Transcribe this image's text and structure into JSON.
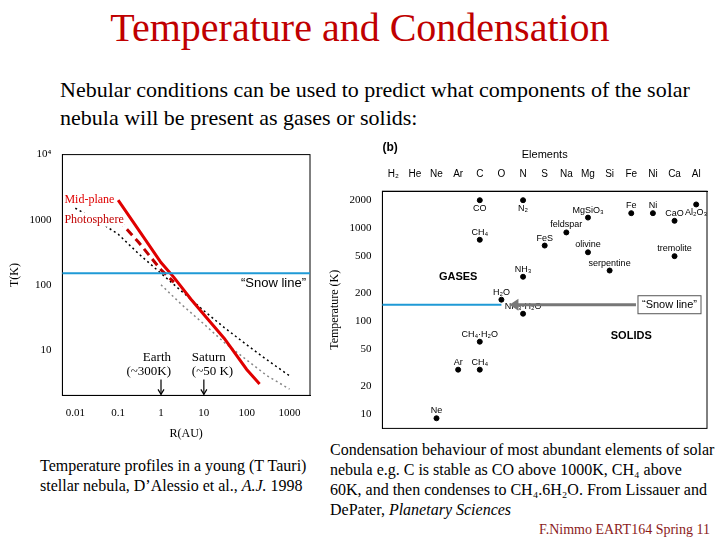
{
  "title": "Temperature and Condensation",
  "subtitle": "Nebular conditions can be used to predict what components of the solar nebula will be present as gases or solids:",
  "chart_data": [
    {
      "type": "line",
      "log": true,
      "grid": false,
      "tick_labels": true,
      "x_label": "R(AU)",
      "y_label": "T(K)",
      "xlim": [
        0.005,
        3000
      ],
      "xticks": [
        0.01,
        0.1,
        1,
        10,
        100,
        1000
      ],
      "ylim": [
        2,
        10000
      ],
      "yticks": [
        10,
        100,
        1000,
        {
          "value": 10000,
          "label": "10⁴"
        }
      ],
      "series": [
        {
          "name": "Mid-plane",
          "color": "#e00000",
          "line_style": "solid",
          "x": [
            0.1,
            0.3,
            1,
            2,
            5,
            10,
            30,
            100,
            200
          ],
          "values": [
            2000,
            700,
            220,
            130,
            60,
            35,
            15,
            5,
            3
          ]
        },
        {
          "name": "Photosphere",
          "color": "#c00000",
          "line_style": "dashed",
          "x": [
            0.1,
            0.3,
            1,
            2
          ],
          "values": [
            1000,
            450,
            170,
            110
          ]
        },
        {
          "color": "#000000",
          "line_style": "dotted",
          "x": [
            0.01,
            0.03,
            0.1,
            0.3,
            1,
            3,
            10,
            30,
            100,
            300,
            1000
          ],
          "values": [
            1500,
            1000,
            600,
            300,
            150,
            80,
            40,
            22,
            12,
            7,
            4
          ]
        },
        {
          "color": "#888888",
          "line_style": "dotted",
          "x": [
            1,
            3,
            10,
            30,
            100,
            300,
            1000
          ],
          "values": [
            100,
            50,
            25,
            13,
            7,
            4,
            2.5
          ]
        }
      ],
      "snow_line": {
        "value": 150,
        "label": "“Snow line”",
        "color": "#1f9ad6"
      },
      "markers": [
        {
          "x": 1,
          "label": "Earth",
          "sublabel": "(~300K)"
        },
        {
          "x": 10,
          "label": "Saturn",
          "sublabel": "(~50 K)"
        }
      ]
    },
    {
      "type": "scatter",
      "log": "y",
      "grid": false,
      "marker": "circle",
      "color": "#000000",
      "panel_label": "(b)",
      "title": "Elements",
      "y_label": "Temperature (K)",
      "categories": [
        "H₂",
        "He",
        "Ne",
        "Ar",
        "C",
        "O",
        "N",
        "S",
        "Na",
        "Mg",
        "Si",
        "Fe",
        "Ni",
        "Ca",
        "Al"
      ],
      "ylim": [
        7,
        2500
      ],
      "yticks": [
        10,
        20,
        50,
        100,
        200,
        500,
        1000,
        2000
      ],
      "points": [
        {
          "label": "CO",
          "category": "C",
          "value": 2000
        },
        {
          "label": "N₂",
          "category": "N",
          "value": 2000
        },
        {
          "label": "Al₂O₃",
          "category": "Al",
          "value": 1800
        },
        {
          "label": "CaO",
          "category": "Ca",
          "value": 1200
        },
        {
          "label": "Fe",
          "category": "Fe",
          "value": 1450
        },
        {
          "label": "Ni",
          "category": "Ni",
          "value": 1450
        },
        {
          "label": "MgSiO₃",
          "category": "Mg",
          "value": 1300
        },
        {
          "label": "feldspar",
          "category": "Na",
          "value": 900
        },
        {
          "label": "CH₄",
          "category": "C",
          "value": 750
        },
        {
          "label": "FeS",
          "category": "S",
          "value": 650
        },
        {
          "label": "olivine",
          "category": "Mg",
          "value": 550
        },
        {
          "label": "tremolite",
          "category": "Ca",
          "value": 500
        },
        {
          "label": "serpentine",
          "category": "Si",
          "value": 350
        },
        {
          "label": "NH₃",
          "category": "N",
          "value": 300
        },
        {
          "label": "H₂O",
          "category": "O",
          "value": 170
        },
        {
          "label": "NH₃·H₂O",
          "category": "N",
          "value": 120
        },
        {
          "label": "CH₄·H₂O",
          "category": "C",
          "value": 60
        },
        {
          "label": "Ar",
          "category": "Ar",
          "value": 30
        },
        {
          "label": "CH₄",
          "category": "C",
          "value": 30
        },
        {
          "label": "Ne",
          "category": "Ne",
          "value": 9
        }
      ],
      "annotations": [
        {
          "text": "GASES",
          "category": "Ar",
          "value": 300
        },
        {
          "text": "SOLIDS",
          "category": "Fe",
          "value": 70
        }
      ],
      "snow_line": {
        "value": 150,
        "label": "“Snow line”",
        "color": "#1f9ad6"
      }
    }
  ],
  "captions": [
    [
      {
        "text": "Temperature profiles in a young (T Tauri) stellar nebula, D’Alessio et al., "
      },
      {
        "text": "A.J.",
        "italic": true
      },
      {
        "text": " 1998"
      }
    ],
    [
      {
        "text": "Condensation behaviour of most abundant elements of solar nebula e.g. C is stable as CO above 1000K, CH₄ above 60K, and then condenses to CH₄.6H₂O. From Lissauer and DePater, "
      },
      {
        "text": "Planetary Sciences",
        "italic": true
      }
    ]
  ],
  "footer": "F.Nimmo EART164 Spring 11"
}
